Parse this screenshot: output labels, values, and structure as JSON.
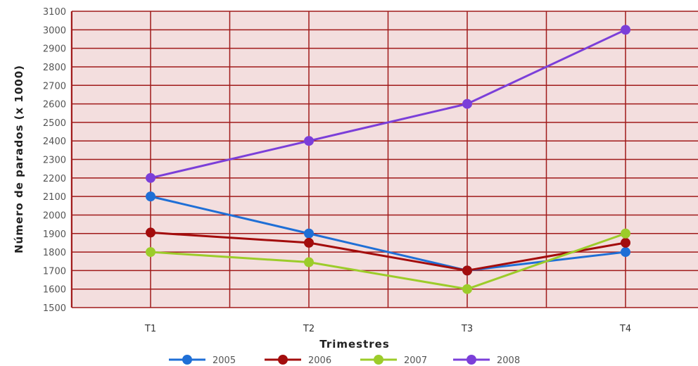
{
  "chart_data": {
    "type": "line",
    "title": "",
    "xlabel": "Trimestres",
    "ylabel": "Número de parados (x 1000)",
    "categories": [
      "T1",
      "T2",
      "T3",
      "T4"
    ],
    "ylim": [
      1500,
      3100
    ],
    "yticks": [
      1500,
      1600,
      1700,
      1800,
      1900,
      2000,
      2100,
      2200,
      2300,
      2400,
      2500,
      2600,
      2700,
      2800,
      2900,
      3000,
      3100
    ],
    "grid": true,
    "legend_position": "bottom",
    "series": [
      {
        "name": "2005",
        "values": [
          2100,
          1900,
          1700,
          1800
        ],
        "color": "#1f6fd6"
      },
      {
        "name": "2006",
        "values": [
          1905,
          1850,
          1700,
          1850
        ],
        "color": "#a30d0d"
      },
      {
        "name": "2007",
        "values": [
          1800,
          1745,
          1600,
          1900
        ],
        "color": "#9ccc2a"
      },
      {
        "name": "2008",
        "values": [
          2200,
          2400,
          2600,
          3000
        ],
        "color": "#7b3fd9"
      }
    ]
  },
  "colors": {
    "plot_background": "#f3dede",
    "grid": "#a01a1a"
  }
}
